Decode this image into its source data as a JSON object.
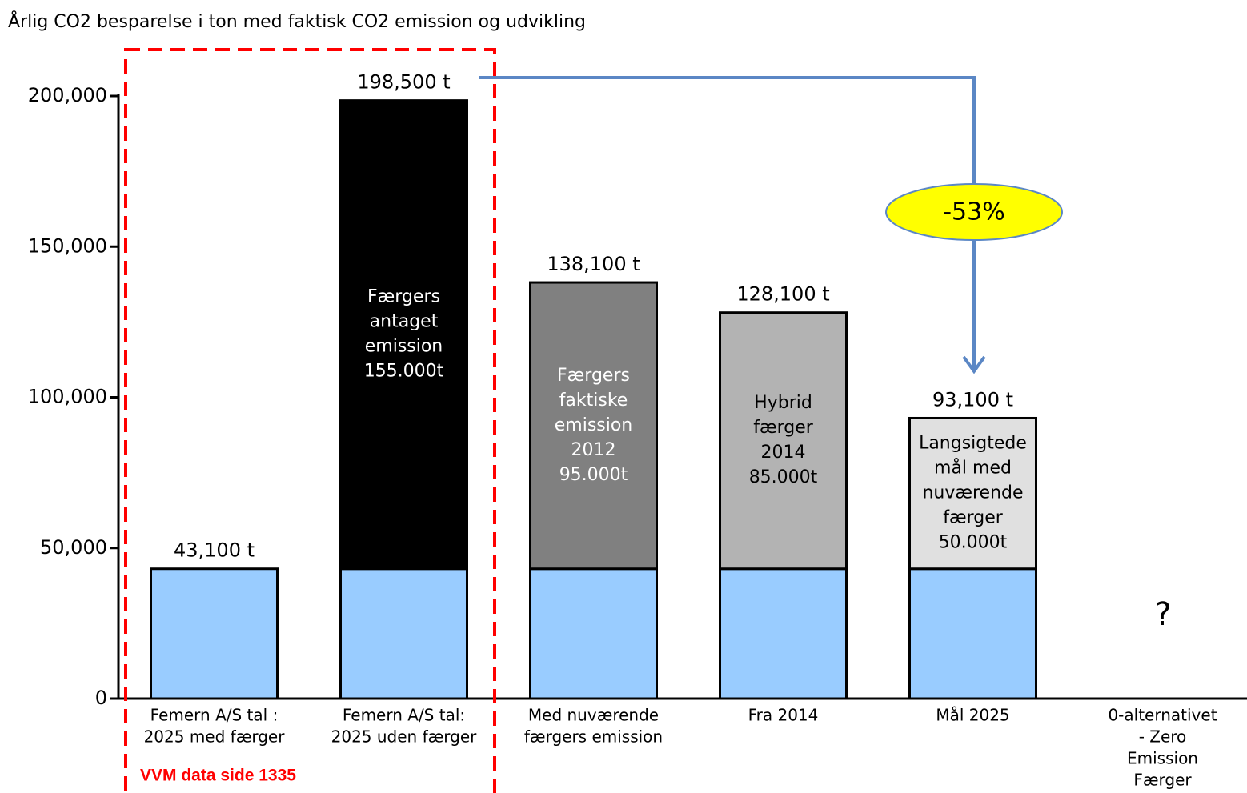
{
  "chart_data": {
    "type": "stacked_bar",
    "title": "Årlig CO2 besparelse i ton med faktisk CO2 emission og udvikling",
    "categories": [
      [
        "Femern A/S tal :",
        "2025 med færger"
      ],
      [
        "Femern A/S tal:",
        "2025 uden færger"
      ],
      [
        "Med nuværende",
        "færgers emission"
      ],
      [
        "Fra 2014"
      ],
      [
        "Mål 2025"
      ],
      [
        "0-alternativet",
        "- Zero",
        "Emission",
        "Færger"
      ]
    ],
    "series": [
      {
        "values": [
          43100,
          43100,
          43100,
          43100,
          43100,
          0
        ],
        "color": "#99ccff"
      },
      {
        "values": [
          null,
          155400,
          95000,
          85000,
          50000,
          null
        ],
        "colors": [
          null,
          "#000000",
          "#808080",
          "#b3b3b3",
          "#e0e0e0",
          null
        ],
        "label_colors": [
          null,
          "#ffffff",
          "#ffffff",
          "#000000",
          "#000000",
          null
        ],
        "segment_labels": [
          null,
          [
            "Færgers",
            "antaget",
            "emission",
            "155.000t"
          ],
          [
            "Færgers",
            "faktiske",
            "emission",
            "2012",
            "95.000t"
          ],
          [
            "Hybrid",
            "færger",
            "2014",
            "85.000t"
          ],
          [
            "Langsigtede",
            "mål med",
            "nuværende",
            "færger",
            "50.000t"
          ],
          null
        ]
      }
    ],
    "totals": [
      43100,
      198500,
      138100,
      128100,
      93100,
      null
    ],
    "total_labels": [
      "43,100 t",
      "198,500 t",
      "138,100 t",
      "128,100 t",
      "93,100 t",
      null
    ],
    "ylim": [
      0,
      200000
    ],
    "yticks": [
      0,
      {
        "value": 50000,
        "label": "50,000"
      },
      {
        "value": 100000,
        "label": "100,000"
      },
      {
        "value": 150000,
        "label": "150,000"
      },
      {
        "value": 200000,
        "label": "200,000"
      }
    ],
    "annotations": {
      "change": "-53%",
      "unknown": "?",
      "source": "VVM data side 1335"
    }
  }
}
